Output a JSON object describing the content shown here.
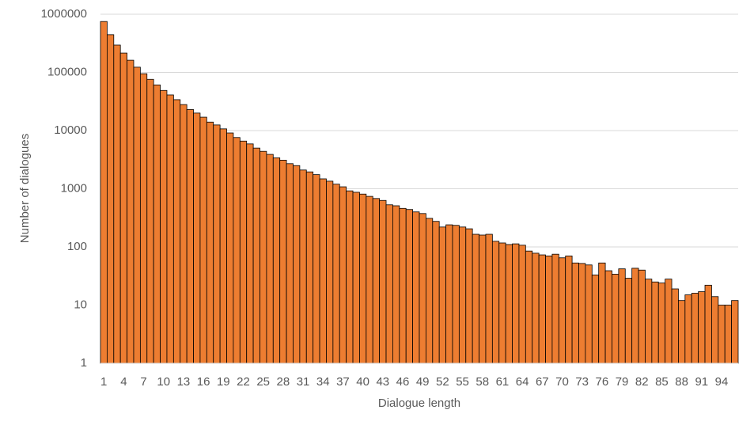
{
  "chart_data": {
    "type": "bar",
    "x_label": "Dialogue length",
    "y_label": "Number of dialogues",
    "categories": [
      1,
      null,
      null,
      4,
      null,
      null,
      7,
      null,
      null,
      10,
      null,
      null,
      13,
      null,
      null,
      16,
      null,
      null,
      19,
      null,
      null,
      22,
      null,
      null,
      25,
      null,
      null,
      28,
      null,
      null,
      31,
      null,
      null,
      34,
      null,
      null,
      37,
      null,
      null,
      40,
      null,
      null,
      43,
      null,
      null,
      46,
      null,
      null,
      49,
      null,
      null,
      52,
      null,
      null,
      55,
      null,
      null,
      58,
      null,
      null,
      61,
      null,
      null,
      64,
      null,
      null,
      67,
      null,
      null,
      70,
      null,
      null,
      73,
      null,
      null,
      76,
      null,
      null,
      79,
      null,
      null,
      82,
      null,
      null,
      85,
      null,
      null,
      88,
      null,
      null,
      91,
      null,
      null,
      94,
      null,
      null
    ],
    "values": [
      750000,
      445000,
      295000,
      215000,
      162000,
      123000,
      95000,
      76000,
      61000,
      49000,
      41000,
      34000,
      28000,
      23000,
      20000,
      17000,
      14000,
      12500,
      10700,
      9100,
      7600,
      6600,
      5900,
      5000,
      4400,
      3900,
      3400,
      3100,
      2700,
      2500,
      2100,
      1950,
      1750,
      1480,
      1350,
      1200,
      1080,
      920,
      870,
      810,
      740,
      680,
      630,
      530,
      510,
      460,
      440,
      400,
      375,
      310,
      275,
      220,
      240,
      235,
      220,
      205,
      165,
      160,
      165,
      125,
      117,
      110,
      113,
      107,
      85,
      78,
      73,
      70,
      75,
      65,
      70,
      53,
      52,
      49,
      33,
      53,
      39,
      34,
      42,
      29,
      43,
      40,
      28,
      25,
      24,
      28,
      19,
      12,
      15,
      16,
      17,
      22,
      14,
      10,
      10,
      12
    ],
    "color": "#ed7d31",
    "log_scale": true,
    "ylim": [
      1,
      1000000
    ],
    "yticks": [
      1,
      10,
      100,
      1000,
      10000,
      100000,
      1000000
    ],
    "grid": true
  }
}
